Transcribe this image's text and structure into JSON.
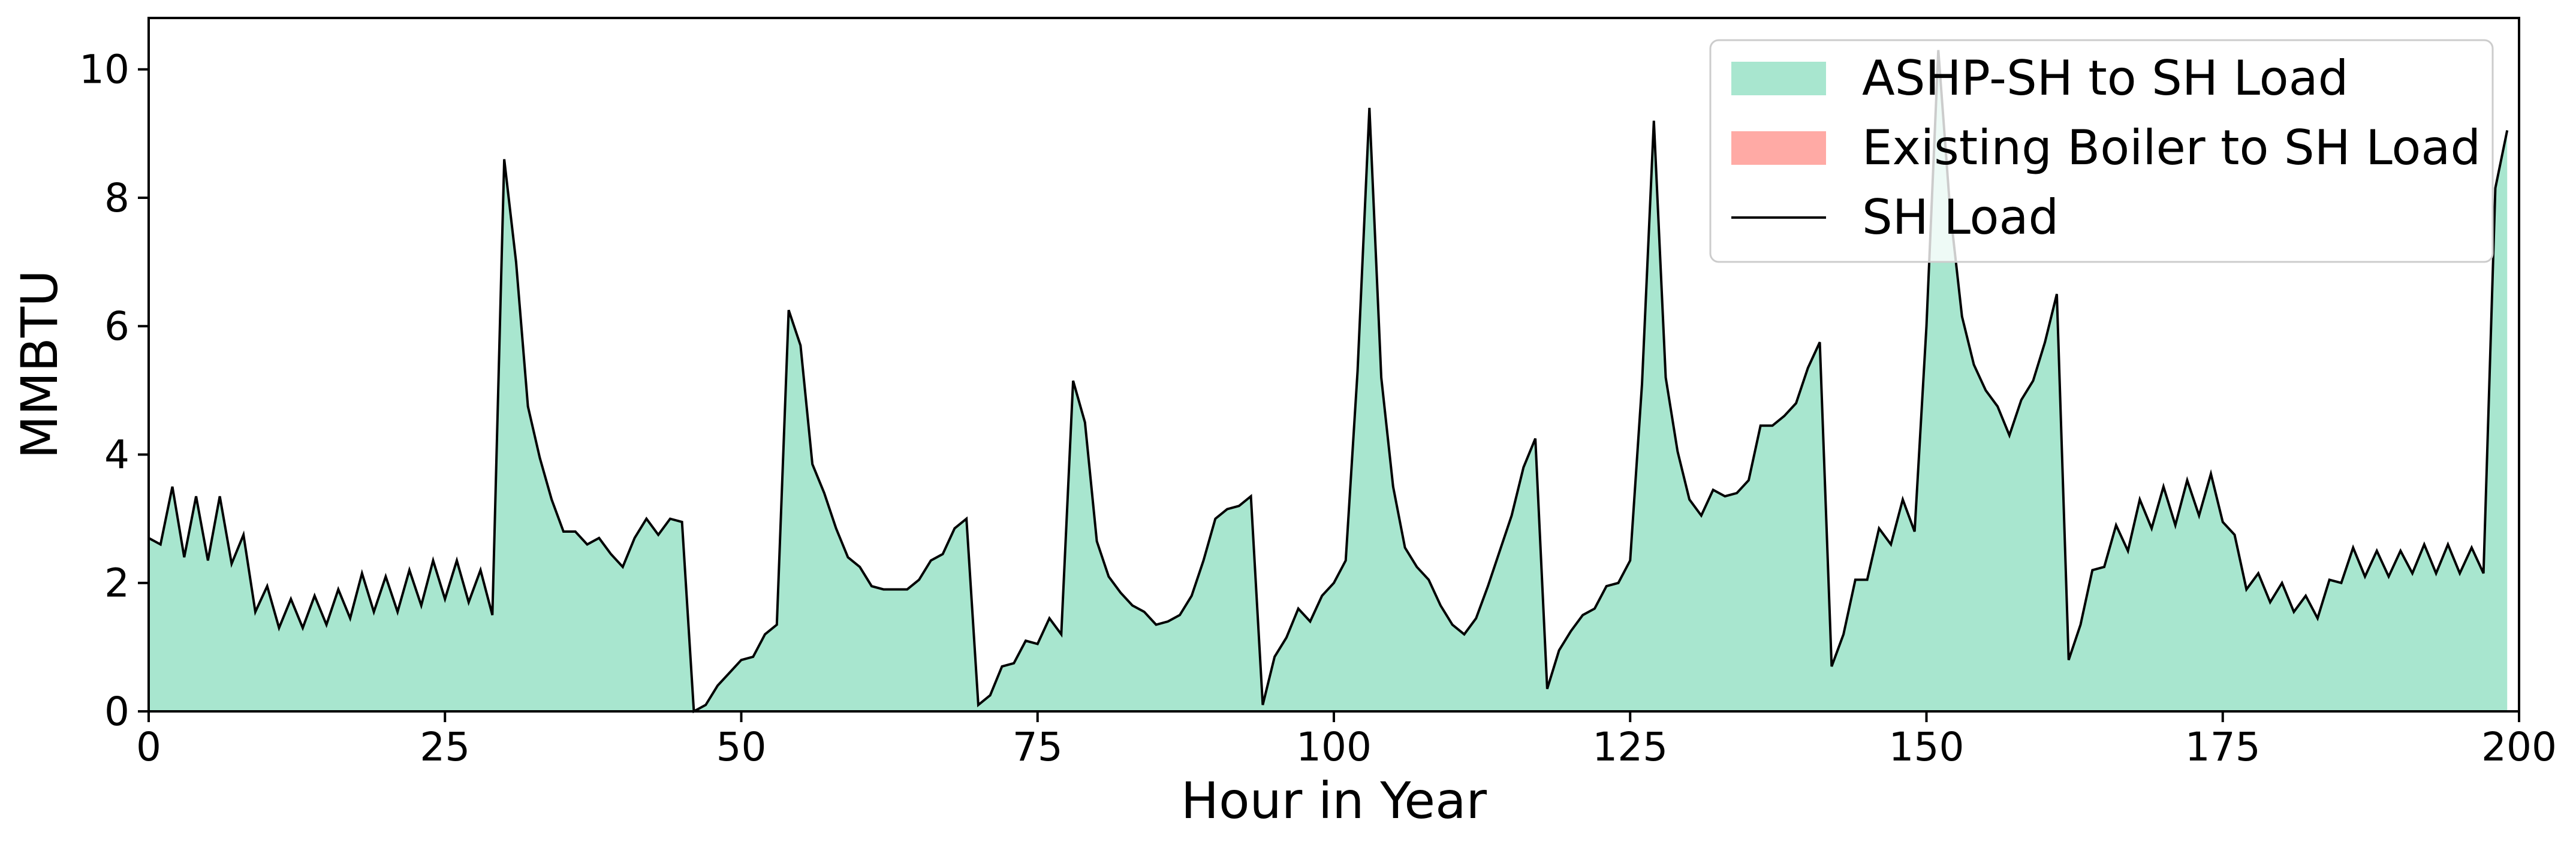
{
  "chart_data": {
    "type": "area",
    "title": "",
    "xlabel": "Hour in Year",
    "ylabel": "MMBTU",
    "xlim": [
      0,
      200
    ],
    "ylim": [
      0,
      10.8
    ],
    "x_ticks": [
      0,
      25,
      50,
      75,
      100,
      125,
      150,
      175,
      200
    ],
    "y_ticks": [
      0,
      2,
      4,
      6,
      8,
      10
    ],
    "grid": false,
    "legend_position": "top-right",
    "series": [
      {
        "name": "ASHP-SH to SH Load",
        "kind": "area",
        "color": "#a8e6cf",
        "follows": "SH Load"
      },
      {
        "name": "Existing Boiler to SH Load",
        "kind": "area",
        "color": "#ffaaa5",
        "values": "all zero"
      },
      {
        "name": "SH Load",
        "kind": "line",
        "color": "#000000",
        "x_start": 0,
        "x_step": 1,
        "values": [
          2.7,
          2.6,
          3.5,
          2.4,
          3.35,
          2.35,
          3.35,
          2.3,
          2.75,
          1.55,
          1.95,
          1.3,
          1.75,
          1.3,
          1.8,
          1.35,
          1.9,
          1.45,
          2.15,
          1.55,
          2.1,
          1.55,
          2.2,
          1.65,
          2.35,
          1.75,
          2.35,
          1.7,
          2.2,
          1.5,
          8.6,
          7.0,
          4.75,
          3.95,
          3.3,
          2.8,
          2.8,
          2.6,
          2.7,
          2.45,
          2.25,
          2.7,
          3.0,
          2.75,
          3.0,
          2.95,
          0.0,
          0.1,
          0.4,
          0.6,
          0.8,
          0.85,
          1.2,
          1.35,
          6.25,
          5.7,
          3.85,
          3.4,
          2.85,
          2.4,
          2.25,
          1.95,
          1.9,
          1.9,
          1.9,
          2.05,
          2.35,
          2.45,
          2.85,
          3.0,
          0.1,
          0.25,
          0.7,
          0.75,
          1.1,
          1.05,
          1.45,
          1.2,
          5.15,
          4.5,
          2.65,
          2.1,
          1.85,
          1.65,
          1.55,
          1.35,
          1.4,
          1.5,
          1.8,
          2.35,
          3.0,
          3.15,
          3.2,
          3.35,
          0.1,
          0.85,
          1.15,
          1.6,
          1.4,
          1.8,
          2.0,
          2.35,
          5.3,
          9.4,
          5.2,
          3.5,
          2.55,
          2.25,
          2.05,
          1.65,
          1.35,
          1.2,
          1.45,
          1.95,
          2.5,
          3.05,
          3.8,
          4.25,
          0.35,
          0.95,
          1.25,
          1.5,
          1.6,
          1.95,
          2.0,
          2.35,
          5.1,
          9.2,
          5.2,
          4.05,
          3.3,
          3.05,
          3.45,
          3.35,
          3.4,
          3.6,
          4.45,
          4.45,
          4.6,
          4.8,
          5.35,
          5.75,
          0.7,
          1.2,
          2.05,
          2.05,
          2.85,
          2.6,
          3.3,
          2.8,
          6.0,
          10.3,
          7.8,
          6.15,
          5.4,
          5.0,
          4.75,
          4.3,
          4.85,
          5.15,
          5.75,
          6.5,
          0.8,
          1.35,
          2.2,
          2.25,
          2.9,
          2.5,
          3.3,
          2.85,
          3.5,
          2.9,
          3.6,
          3.05,
          3.7,
          2.95,
          2.75,
          1.9,
          2.15,
          1.7,
          2.0,
          1.55,
          1.8,
          1.45,
          2.05,
          2.0,
          2.55,
          2.1,
          2.5,
          2.1,
          2.5,
          2.15,
          2.6,
          2.15,
          2.6,
          2.15,
          2.55,
          2.15,
          8.15,
          9.05
        ]
      }
    ]
  }
}
